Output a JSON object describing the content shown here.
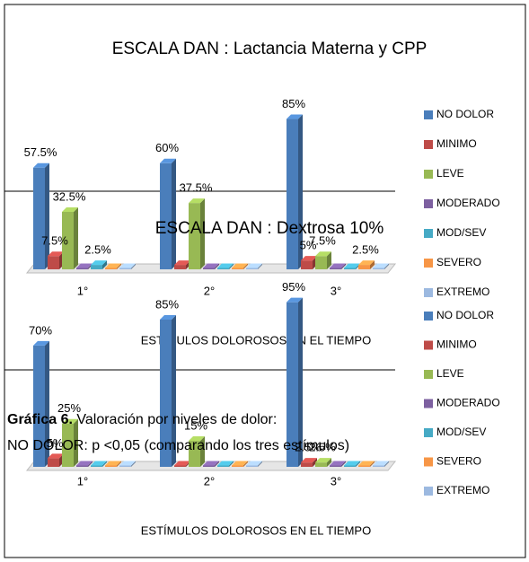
{
  "chart_data": [
    {
      "type": "bar3d",
      "title": "ESCALA DAN : Lactancia Materna y CPP",
      "x_label": "ESTÍMULOS DOLOROSOS EN EL TIEMPO",
      "categories": [
        "1°",
        "2°",
        "3°"
      ],
      "ylim": [
        0,
        100
      ],
      "series": [
        {
          "name": "NO DOLOR",
          "color": "#4a7ebb",
          "values": [
            57.5,
            60,
            85
          ],
          "value_labels": [
            "57.5%",
            "60%",
            "85%"
          ]
        },
        {
          "name": "MINIMO",
          "color": "#be4b48",
          "values": [
            7.5,
            2.5,
            5
          ],
          "value_labels": [
            "7.5%",
            null,
            "5%"
          ]
        },
        {
          "name": "LEVE",
          "color": "#98b954",
          "values": [
            32.5,
            37.5,
            7.5
          ],
          "value_labels": [
            "32.5%",
            "37.5%",
            "7.5%"
          ]
        },
        {
          "name": "MODERADO",
          "color": "#7d60a0",
          "values": [
            0,
            0,
            0
          ],
          "value_labels": [
            null,
            null,
            null
          ]
        },
        {
          "name": "MOD/SEV",
          "color": "#46aac5",
          "values": [
            2.5,
            0,
            0
          ],
          "value_labels": [
            "2.5%",
            null,
            null
          ]
        },
        {
          "name": "SEVERO",
          "color": "#f79646",
          "values": [
            0,
            0,
            2.5
          ],
          "value_labels": [
            null,
            null,
            "2.5%"
          ]
        },
        {
          "name": "EXTREMO",
          "color": "#9cb9e0",
          "values": [
            0,
            0,
            0
          ],
          "value_labels": [
            null,
            null,
            null
          ]
        }
      ]
    },
    {
      "type": "bar3d",
      "title": "ESCALA DAN : Dextrosa 10%",
      "x_label": "ESTÍMULOS DOLOROSOS EN EL TIEMPO",
      "categories": [
        "1°",
        "2°",
        "3°"
      ],
      "ylim": [
        0,
        100
      ],
      "series": [
        {
          "name": "NO DOLOR",
          "color": "#4a7ebb",
          "values": [
            70,
            85,
            95
          ],
          "value_labels": [
            "70%",
            "85%",
            "95%"
          ]
        },
        {
          "name": "MINIMO",
          "color": "#be4b48",
          "values": [
            5,
            0,
            2.5
          ],
          "value_labels": [
            "5%",
            null,
            "2.5%"
          ]
        },
        {
          "name": "LEVE",
          "color": "#98b954",
          "values": [
            25,
            15,
            2.5
          ],
          "value_labels": [
            "25%",
            "15%",
            "2.5%"
          ]
        },
        {
          "name": "MODERADO",
          "color": "#7d60a0",
          "values": [
            0,
            0,
            0
          ],
          "value_labels": [
            null,
            null,
            null
          ]
        },
        {
          "name": "MOD/SEV",
          "color": "#46aac5",
          "values": [
            0,
            0,
            0
          ],
          "value_labels": [
            null,
            null,
            null
          ]
        },
        {
          "name": "SEVERO",
          "color": "#f79646",
          "values": [
            0,
            0,
            0
          ],
          "value_labels": [
            null,
            null,
            null
          ]
        },
        {
          "name": "EXTREMO",
          "color": "#9cb9e0",
          "values": [
            0,
            0,
            0
          ],
          "value_labels": [
            null,
            null,
            null
          ]
        }
      ]
    }
  ],
  "caption": {
    "label": "Gráfica 6.",
    "text": " Valoración por niveles de dolor:",
    "note": "NO DOLOR: p <0,05 (comparando los tres estímulos)"
  }
}
